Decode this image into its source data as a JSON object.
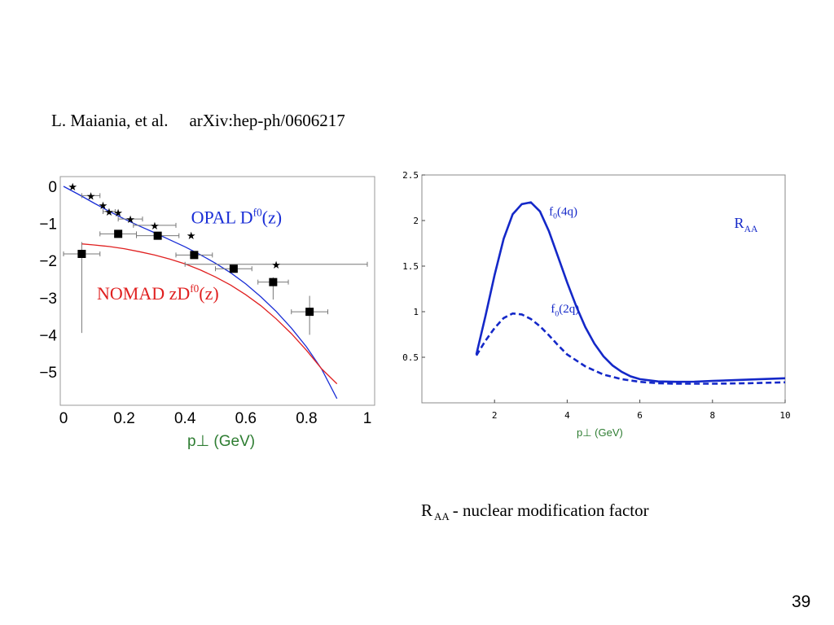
{
  "citation": {
    "authors": "L. Maiania, et al.",
    "reference": "arXiv:hep-ph/0606217"
  },
  "caption": {
    "main": "R",
    "subscript": "AA",
    "text": "- nuclear modification factor"
  },
  "slide_number": "39",
  "colors": {
    "opal": "#1a2ed6",
    "nomad": "#e02020",
    "raa": "#1428c8",
    "xlabel": "#2e7d32"
  },
  "chart_data": [
    {
      "type": "scatter",
      "xlabel": "p⊥ (GeV)",
      "xlim": [
        0,
        1
      ],
      "ylim": [
        -5.8,
        0.2
      ],
      "x_ticks": [
        0,
        0.2,
        0.4,
        0.6,
        0.8,
        1
      ],
      "x_tick_labels": [
        "0",
        "0.2",
        "0.4",
        "0.6",
        "0.8",
        "1"
      ],
      "y_ticks": [
        0,
        -1,
        -2,
        -3,
        -4,
        -5
      ],
      "y_tick_labels": [
        "0",
        "−1",
        "−2",
        "−3",
        "−4",
        "−5"
      ],
      "annotations": [
        {
          "text": "OPAL D",
          "sup": "f0",
          "tail": "(z)",
          "x": 0.42,
          "y": -1.0,
          "color": "#1a2ed6"
        },
        {
          "text": "NOMAD zD",
          "sup": "f0",
          "tail": "(z)",
          "x": 0.11,
          "y": -3.05,
          "color": "#e02020"
        }
      ],
      "series": [
        {
          "name": "OPAL",
          "marker": "star",
          "points": [
            {
              "x": 0.03,
              "y": 0.0,
              "xerr": 0.0
            },
            {
              "x": 0.09,
              "y": -0.25,
              "xerr": 0.03
            },
            {
              "x": 0.13,
              "y": -0.5,
              "xerr": 0.0
            },
            {
              "x": 0.15,
              "y": -0.68,
              "xerr": 0.02
            },
            {
              "x": 0.18,
              "y": -0.7,
              "xerr": 0.0
            },
            {
              "x": 0.22,
              "y": -0.88,
              "xerr": 0.04
            },
            {
              "x": 0.3,
              "y": -1.05,
              "xerr": 0.07
            },
            {
              "x": 0.42,
              "y": -1.32,
              "xerr": 0.0
            },
            {
              "x": 0.7,
              "y": -2.1,
              "xerr": 0.3
            }
          ]
        },
        {
          "name": "NOMAD",
          "marker": "square",
          "points": [
            {
              "x": 0.06,
              "y": -1.82,
              "xerr": 0.06,
              "ylo": -3.95,
              "yhi": -1.5
            },
            {
              "x": 0.18,
              "y": -1.28,
              "xerr": 0.06,
              "ylo": -1.28,
              "yhi": -1.28
            },
            {
              "x": 0.31,
              "y": -1.33,
              "xerr": 0.07,
              "ylo": -1.33,
              "yhi": -1.33
            },
            {
              "x": 0.43,
              "y": -1.85,
              "xerr": 0.06,
              "ylo": -1.85,
              "yhi": -1.85
            },
            {
              "x": 0.56,
              "y": -2.22,
              "xerr": 0.06,
              "ylo": -2.22,
              "yhi": -2.22
            },
            {
              "x": 0.69,
              "y": -2.58,
              "xerr": 0.05,
              "ylo": -3.05,
              "yhi": -2.45
            },
            {
              "x": 0.81,
              "y": -3.38,
              "xerr": 0.06,
              "ylo": -4.0,
              "yhi": -2.95
            }
          ]
        }
      ],
      "curves": [
        {
          "name": "OPAL",
          "color": "#1a2ed6",
          "points": [
            [
              0.0,
              0.0
            ],
            [
              0.05,
              -0.22
            ],
            [
              0.1,
              -0.45
            ],
            [
              0.15,
              -0.67
            ],
            [
              0.2,
              -0.88
            ],
            [
              0.25,
              -1.07
            ],
            [
              0.3,
              -1.25
            ],
            [
              0.35,
              -1.44
            ],
            [
              0.4,
              -1.63
            ],
            [
              0.45,
              -1.84
            ],
            [
              0.5,
              -2.07
            ],
            [
              0.55,
              -2.33
            ],
            [
              0.6,
              -2.63
            ],
            [
              0.65,
              -2.98
            ],
            [
              0.7,
              -3.37
            ],
            [
              0.75,
              -3.82
            ],
            [
              0.8,
              -4.33
            ],
            [
              0.85,
              -4.93
            ],
            [
              0.9,
              -5.72
            ]
          ]
        },
        {
          "name": "NOMAD",
          "color": "#e02020",
          "points": [
            [
              0.06,
              -1.55
            ],
            [
              0.1,
              -1.58
            ],
            [
              0.15,
              -1.62
            ],
            [
              0.2,
              -1.68
            ],
            [
              0.25,
              -1.76
            ],
            [
              0.3,
              -1.85
            ],
            [
              0.35,
              -1.96
            ],
            [
              0.4,
              -2.09
            ],
            [
              0.45,
              -2.25
            ],
            [
              0.5,
              -2.44
            ],
            [
              0.55,
              -2.66
            ],
            [
              0.6,
              -2.92
            ],
            [
              0.65,
              -3.22
            ],
            [
              0.7,
              -3.57
            ],
            [
              0.75,
              -3.97
            ],
            [
              0.8,
              -4.42
            ],
            [
              0.85,
              -4.92
            ],
            [
              0.9,
              -5.32
            ]
          ]
        }
      ]
    },
    {
      "type": "line",
      "xlabel": "p⊥ (GeV)",
      "xlim": [
        0,
        10
      ],
      "ylim": [
        0.0,
        2.5
      ],
      "x_ticks": [
        2,
        4,
        6,
        8,
        10
      ],
      "x_tick_labels": [
        "2",
        "4",
        "6",
        "8",
        "10"
      ],
      "y_ticks": [
        0.5,
        1,
        1.5,
        2,
        2.5
      ],
      "y_tick_labels": [
        "0.5",
        "1",
        "1.5",
        "2",
        "2.5"
      ],
      "legend": {
        "text": "R",
        "sub": "AA",
        "x": 8.6,
        "y": 1.92
      },
      "series": [
        {
          "name": "f",
          "name_sub": "0",
          "name_tail": "(4q)",
          "label_x": 3.5,
          "label_y": 2.06,
          "style": "solid",
          "x": [
            1.5,
            1.75,
            2.0,
            2.25,
            2.5,
            2.75,
            3.0,
            3.25,
            3.5,
            3.75,
            4.0,
            4.25,
            4.5,
            4.75,
            5.0,
            5.25,
            5.5,
            5.75,
            6.0,
            6.5,
            7.0,
            7.5,
            8.0,
            9.0,
            10.0
          ],
          "y": [
            0.53,
            0.95,
            1.4,
            1.8,
            2.07,
            2.18,
            2.2,
            2.1,
            1.88,
            1.6,
            1.32,
            1.06,
            0.83,
            0.65,
            0.51,
            0.41,
            0.34,
            0.29,
            0.26,
            0.235,
            0.23,
            0.232,
            0.24,
            0.255,
            0.27
          ]
        },
        {
          "name": "f",
          "name_sub": "0",
          "name_tail": "(2q)",
          "label_x": 3.55,
          "label_y": 0.99,
          "style": "dashed",
          "x": [
            1.5,
            1.75,
            2.0,
            2.25,
            2.5,
            2.75,
            3.0,
            3.25,
            3.5,
            3.75,
            4.0,
            4.5,
            5.0,
            5.5,
            6.0,
            6.5,
            7.0,
            8.0,
            9.0,
            10.0
          ],
          "y": [
            0.52,
            0.68,
            0.82,
            0.93,
            0.98,
            0.97,
            0.92,
            0.84,
            0.74,
            0.63,
            0.53,
            0.4,
            0.31,
            0.26,
            0.23,
            0.215,
            0.21,
            0.21,
            0.215,
            0.225
          ]
        }
      ]
    }
  ]
}
